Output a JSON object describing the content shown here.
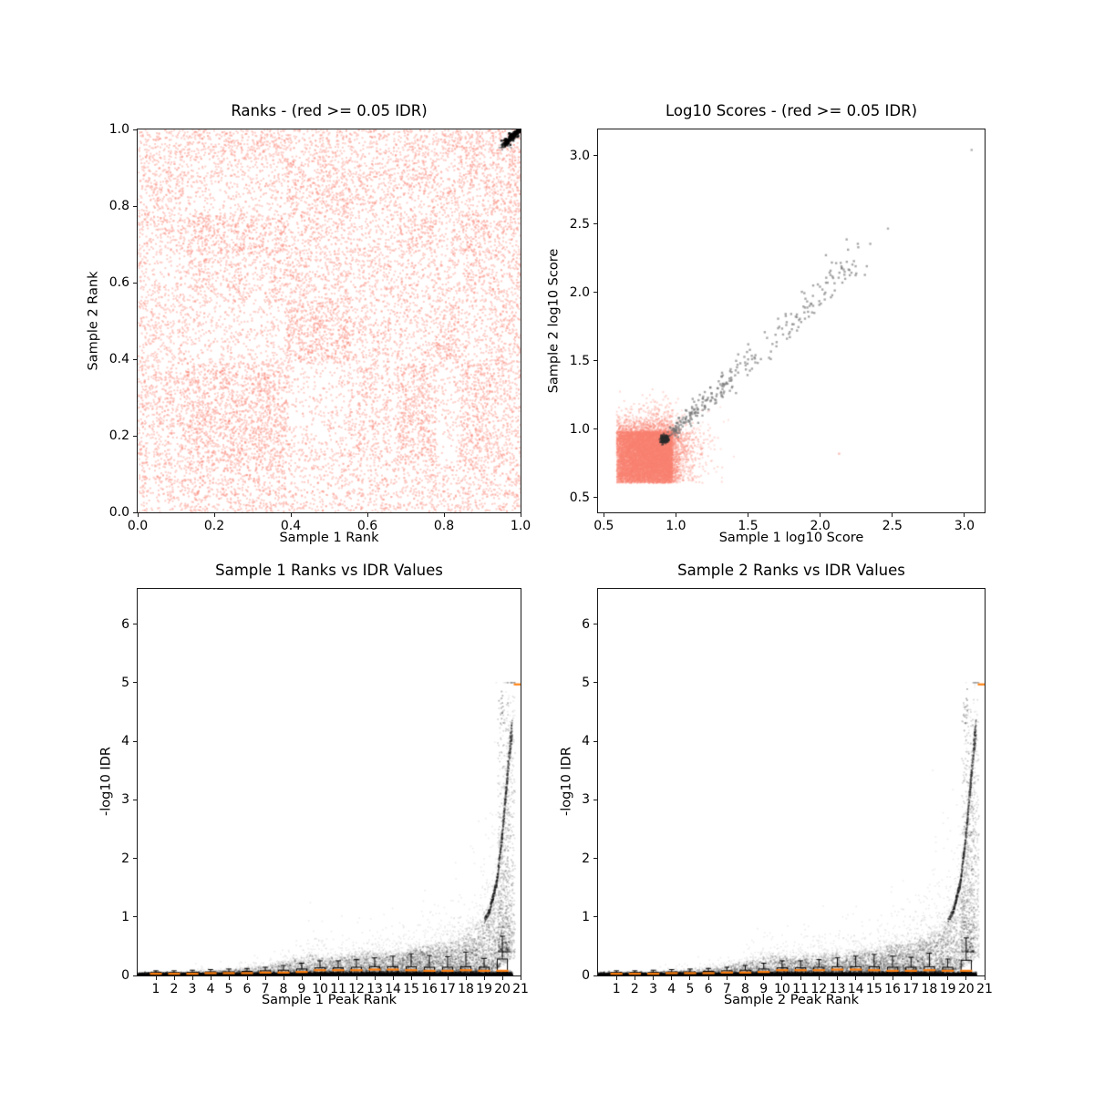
{
  "figure": {
    "kind": "idr-consistency-plots",
    "background": "#ffffff",
    "nonsignificant_color": "#FA8072",
    "significant_color": "#000000",
    "median_color": "#FF7F0E"
  },
  "chart_data": [
    {
      "id": "ranks",
      "type": "scatter",
      "title": "Ranks - (red >= 0.05 IDR)",
      "xlabel": "Sample 1 Rank",
      "ylabel": "Sample 2 Rank",
      "xlim": [
        0,
        1
      ],
      "ylim": [
        0,
        1
      ],
      "xticks": [
        {
          "v": 0,
          "label": "0.0"
        },
        {
          "v": 0.2,
          "label": "0.2"
        },
        {
          "v": 0.4,
          "label": "0.4"
        },
        {
          "v": 0.6,
          "label": "0.6"
        },
        {
          "v": 0.8,
          "label": "0.8"
        },
        {
          "v": 1.0,
          "label": "1.0"
        }
      ],
      "yticks": [
        {
          "v": 0,
          "label": "0.0"
        },
        {
          "v": 0.2,
          "label": "0.2"
        },
        {
          "v": 0.4,
          "label": "0.4"
        },
        {
          "v": 0.6,
          "label": "0.6"
        },
        {
          "v": 0.8,
          "label": "0.8"
        },
        {
          "v": 1.0,
          "label": "1.0"
        }
      ],
      "point_color": "#FA8072",
      "plaid": {
        "bands": [
          0,
          0.13,
          0.39,
          0.55,
          0.68,
          0.78,
          0.84,
          0.92,
          1.0
        ],
        "striped_bands": [
          0,
          3
        ],
        "density": [
          [
            0.75,
            0.8,
            0.55,
            0.7,
            0.6,
            0.55,
            0.7,
            0.65
          ],
          [
            0.8,
            0.95,
            0.3,
            0.65,
            0.9,
            0.25,
            0.85,
            0.6
          ],
          [
            0.6,
            0.3,
            0.95,
            0.65,
            0.45,
            0.85,
            0.35,
            0.75
          ],
          [
            0.55,
            0.65,
            0.7,
            0.75,
            0.6,
            0.55,
            0.75,
            0.7
          ],
          [
            0.7,
            0.9,
            0.55,
            0.6,
            0.8,
            0.45,
            0.8,
            0.6
          ],
          [
            0.6,
            0.25,
            0.8,
            0.6,
            0.45,
            0.7,
            0.35,
            0.8
          ],
          [
            0.7,
            0.4,
            0.7,
            0.75,
            0.8,
            0.35,
            0.85,
            0.7
          ],
          [
            0.7,
            0.75,
            0.6,
            0.75,
            0.65,
            0.6,
            0.75,
            0.85
          ]
        ],
        "n": 15000,
        "alpha": 0.38
      },
      "sig_cluster": {
        "from": [
          0.952,
          0.957
        ],
        "to": [
          0.997,
          0.999
        ],
        "n": 160,
        "jitter": 0.004,
        "color": "#000000"
      }
    },
    {
      "id": "scores",
      "type": "scatter",
      "title": "Log10 Scores - (red >= 0.05 IDR)",
      "xlabel": "Sample 1 log10 Score",
      "ylabel": "Sample 2 log10 Score",
      "xlim": [
        0.46,
        3.14
      ],
      "ylim": [
        0.39,
        3.19
      ],
      "xticks": [
        {
          "v": 0.5,
          "label": "0.5"
        },
        {
          "v": 1.0,
          "label": "1.0"
        },
        {
          "v": 1.5,
          "label": "1.5"
        },
        {
          "v": 2.0,
          "label": "2.0"
        },
        {
          "v": 2.5,
          "label": "2.5"
        },
        {
          "v": 3.0,
          "label": "3.0"
        }
      ],
      "yticks": [
        {
          "v": 0.5,
          "label": "0.5"
        },
        {
          "v": 1.0,
          "label": "1.0"
        },
        {
          "v": 1.5,
          "label": "1.5"
        },
        {
          "v": 2.0,
          "label": "2.0"
        },
        {
          "v": 2.5,
          "label": "2.5"
        },
        {
          "v": 3.0,
          "label": "3.0"
        }
      ],
      "point_color": "#FA8072",
      "blob": {
        "x0": 0.59,
        "y0": 0.605,
        "w": 0.385,
        "h": 0.375,
        "n": 11500,
        "fringe": 0.065,
        "alpha": 0.3
      },
      "tail": {
        "n": 160,
        "x_max": 1.48,
        "y_max": 1.16
      },
      "knot": {
        "cx": 0.923,
        "cy": 0.923,
        "sd": 0.014,
        "n": 170,
        "color": "#2b2b2b"
      },
      "diag": {
        "n": 290,
        "c0": 0.98,
        "c1": 2.3,
        "spread0": 0.024,
        "spread1": 0.075,
        "color": "#6e6e6e"
      },
      "outliers_gray": [
        [
          2.47,
          2.465
        ],
        [
          3.05,
          3.04
        ]
      ],
      "outliers_red": [
        [
          2.13,
          0.82
        ]
      ]
    },
    {
      "id": "idr1",
      "type": "scatter+boxplot",
      "title": "Sample 1 Ranks vs IDR Values",
      "xlabel": "Sample 1 Peak Rank",
      "ylabel": "-log10 IDR",
      "xlim": [
        0,
        21
      ],
      "ylim": [
        0,
        6.6
      ],
      "xticks": [
        {
          "v": 1,
          "label": "1"
        },
        {
          "v": 2,
          "label": "2"
        },
        {
          "v": 3,
          "label": "3"
        },
        {
          "v": 4,
          "label": "4"
        },
        {
          "v": 5,
          "label": "5"
        },
        {
          "v": 6,
          "label": "6"
        },
        {
          "v": 7,
          "label": "7"
        },
        {
          "v": 8,
          "label": "8"
        },
        {
          "v": 9,
          "label": "9"
        },
        {
          "v": 10,
          "label": "10"
        },
        {
          "v": 11,
          "label": "11"
        },
        {
          "v": 12,
          "label": "12"
        },
        {
          "v": 13,
          "label": "13"
        },
        {
          "v": 14,
          "label": "14"
        },
        {
          "v": 15,
          "label": "15"
        },
        {
          "v": 16,
          "label": "16"
        },
        {
          "v": 17,
          "label": "17"
        },
        {
          "v": 18,
          "label": "18"
        },
        {
          "v": 19,
          "label": "19"
        },
        {
          "v": 20,
          "label": "20"
        },
        {
          "v": 21,
          "label": "21"
        }
      ],
      "yticks": [
        {
          "v": 0,
          "label": "0"
        },
        {
          "v": 1,
          "label": "1"
        },
        {
          "v": 2,
          "label": "2"
        },
        {
          "v": 3,
          "label": "3"
        },
        {
          "v": 4,
          "label": "4"
        },
        {
          "v": 5,
          "label": "5"
        },
        {
          "v": 6,
          "label": "6"
        }
      ],
      "band": {
        "n": 9000,
        "sd": 0.02,
        "xmax": 20.55
      },
      "cloud": {
        "n": 7000,
        "envelope_x": [
          0,
          3,
          5,
          7,
          8.5,
          9.5,
          10.5,
          11.5,
          13,
          14.5,
          16,
          17,
          18,
          18.8,
          19.3,
          19.7,
          20.0,
          20.25,
          20.45,
          20.6
        ],
        "envelope_y": [
          0.05,
          0.06,
          0.08,
          0.14,
          0.24,
          0.3,
          0.27,
          0.3,
          0.33,
          0.36,
          0.45,
          0.5,
          0.62,
          0.8,
          1.1,
          1.6,
          2.4,
          3.3,
          4.0,
          4.3
        ]
      },
      "plume": {
        "n": 460,
        "x0": 19.75,
        "x1": 20.45,
        "ymax": 4.75
      },
      "cap_dots": {
        "n": 12,
        "x": 19.97,
        "y0": 4.3,
        "y1": 4.95
      },
      "box": {
        "median": [
          0.03,
          0.03,
          0.03,
          0.04,
          0.04,
          0.04,
          0.05,
          0.05,
          0.06,
          0.09,
          0.09,
          0.09,
          0.1,
          0.1,
          0.09,
          0.08,
          0.08,
          0.09,
          0.08,
          0.08
        ],
        "q1": [
          0.01,
          0.01,
          0.01,
          0.01,
          0.01,
          0.01,
          0.01,
          0.01,
          0.01,
          0.01,
          0.01,
          0.01,
          0.01,
          0.01,
          0.01,
          0.01,
          0.01,
          0.01,
          0.01,
          0.05
        ],
        "q3": [
          0.05,
          0.05,
          0.05,
          0.06,
          0.06,
          0.07,
          0.08,
          0.09,
          0.11,
          0.13,
          0.13,
          0.14,
          0.15,
          0.15,
          0.15,
          0.14,
          0.14,
          0.15,
          0.14,
          0.28
        ],
        "whisker": [
          0.08,
          0.08,
          0.09,
          0.1,
          0.11,
          0.12,
          0.14,
          0.17,
          0.21,
          0.25,
          0.25,
          0.27,
          0.3,
          0.33,
          0.37,
          0.34,
          0.32,
          0.4,
          0.29,
          0.67
        ],
        "median_rank21": 4.97
      }
    },
    {
      "id": "idr2",
      "type": "scatter+boxplot",
      "title": "Sample 2 Ranks vs IDR Values",
      "xlabel": "Sample 2 Peak Rank",
      "ylabel": "-log10 IDR",
      "xlim": [
        0,
        21
      ],
      "ylim": [
        0,
        6.6
      ],
      "xticks": [
        {
          "v": 1,
          "label": "1"
        },
        {
          "v": 2,
          "label": "2"
        },
        {
          "v": 3,
          "label": "3"
        },
        {
          "v": 4,
          "label": "4"
        },
        {
          "v": 5,
          "label": "5"
        },
        {
          "v": 6,
          "label": "6"
        },
        {
          "v": 7,
          "label": "7"
        },
        {
          "v": 8,
          "label": "8"
        },
        {
          "v": 9,
          "label": "9"
        },
        {
          "v": 10,
          "label": "10"
        },
        {
          "v": 11,
          "label": "11"
        },
        {
          "v": 12,
          "label": "12"
        },
        {
          "v": 13,
          "label": "13"
        },
        {
          "v": 14,
          "label": "14"
        },
        {
          "v": 15,
          "label": "15"
        },
        {
          "v": 16,
          "label": "16"
        },
        {
          "v": 17,
          "label": "17"
        },
        {
          "v": 18,
          "label": "18"
        },
        {
          "v": 19,
          "label": "19"
        },
        {
          "v": 20,
          "label": "20"
        },
        {
          "v": 21,
          "label": "21"
        }
      ],
      "yticks": [
        {
          "v": 0,
          "label": "0"
        },
        {
          "v": 1,
          "label": "1"
        },
        {
          "v": 2,
          "label": "2"
        },
        {
          "v": 3,
          "label": "3"
        },
        {
          "v": 4,
          "label": "4"
        },
        {
          "v": 5,
          "label": "5"
        },
        {
          "v": 6,
          "label": "6"
        }
      ],
      "band": {
        "n": 9000,
        "sd": 0.02,
        "xmax": 20.55
      },
      "cloud": {
        "n": 7000,
        "envelope_x": [
          0,
          3,
          5,
          7,
          8.5,
          9.5,
          10.5,
          11.5,
          13,
          14.5,
          16,
          17,
          18,
          18.8,
          19.3,
          19.7,
          20.0,
          20.25,
          20.45,
          20.6
        ],
        "envelope_y": [
          0.05,
          0.06,
          0.08,
          0.14,
          0.24,
          0.3,
          0.27,
          0.3,
          0.33,
          0.36,
          0.45,
          0.5,
          0.62,
          0.8,
          1.1,
          1.6,
          2.4,
          3.3,
          4.0,
          4.3
        ]
      },
      "plume": {
        "n": 460,
        "x0": 19.75,
        "x1": 20.45,
        "ymax": 4.75
      },
      "cap_dots": {
        "n": 12,
        "x": 19.97,
        "y0": 4.3,
        "y1": 4.95
      },
      "box": {
        "median": [
          0.03,
          0.03,
          0.03,
          0.04,
          0.04,
          0.04,
          0.05,
          0.05,
          0.06,
          0.09,
          0.09,
          0.09,
          0.1,
          0.1,
          0.09,
          0.08,
          0.08,
          0.09,
          0.08,
          0.08
        ],
        "q1": [
          0.01,
          0.01,
          0.01,
          0.01,
          0.01,
          0.01,
          0.01,
          0.01,
          0.01,
          0.01,
          0.01,
          0.01,
          0.01,
          0.01,
          0.01,
          0.01,
          0.01,
          0.01,
          0.01,
          0.05
        ],
        "q3": [
          0.05,
          0.05,
          0.05,
          0.06,
          0.06,
          0.07,
          0.08,
          0.09,
          0.11,
          0.13,
          0.13,
          0.14,
          0.15,
          0.15,
          0.15,
          0.14,
          0.14,
          0.15,
          0.14,
          0.26
        ],
        "whisker": [
          0.08,
          0.08,
          0.09,
          0.1,
          0.11,
          0.12,
          0.14,
          0.17,
          0.21,
          0.25,
          0.25,
          0.27,
          0.3,
          0.33,
          0.36,
          0.33,
          0.31,
          0.38,
          0.28,
          0.64
        ],
        "median_rank21": 4.97
      }
    }
  ]
}
